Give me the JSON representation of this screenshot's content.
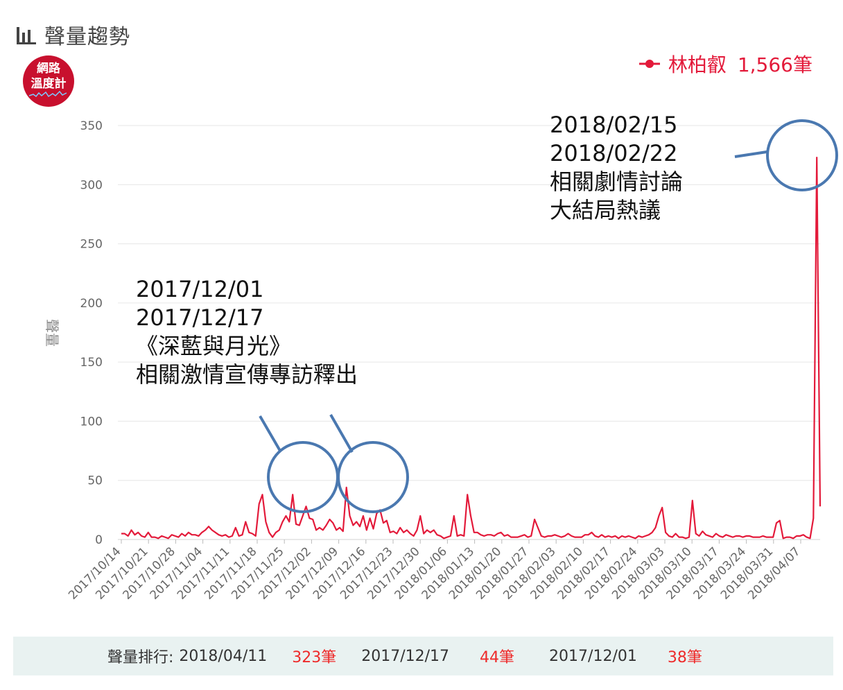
{
  "title": "聲量趨勢",
  "badge": {
    "line1": "網路",
    "line2": "溫度計"
  },
  "legend": {
    "name": "林柏叡",
    "count": "1,566筆",
    "color": "#e31a3a"
  },
  "annotations": [
    {
      "lines": [
        "2018/02/15",
        "2018/02/22",
        "相關劇情討論",
        "大結局熱議"
      ]
    },
    {
      "lines": [
        "2017/12/01",
        "2017/12/17",
        "《深藍與月光》",
        "相關激情宣傳專訪釋出"
      ]
    }
  ],
  "footer": {
    "label": "聲量排行:",
    "ranks": [
      {
        "date": "2018/04/11",
        "count": "323筆"
      },
      {
        "date": "2017/12/17",
        "count": "44筆"
      },
      {
        "date": "2017/12/01",
        "count": "38筆"
      }
    ]
  },
  "chart_data": {
    "type": "line",
    "ylabel": "聲量",
    "ylim": [
      0,
      350
    ],
    "yticks": [
      0,
      50,
      100,
      150,
      200,
      250,
      300,
      350
    ],
    "grid": true,
    "legend_position": "top-right",
    "xtick_labels": [
      "2017/10/14",
      "2017/10/21",
      "2017/10/28",
      "2017/11/04",
      "2017/11/11",
      "2017/11/18",
      "2017/11/25",
      "2017/12/02",
      "2017/12/09",
      "2017/12/16",
      "2017/12/23",
      "2017/12/30",
      "2018/01/06",
      "2018/01/13",
      "2018/01/20",
      "2018/01/27",
      "2018/02/03",
      "2018/02/10",
      "2018/02/17",
      "2018/02/24",
      "2018/03/03",
      "2018/03/10",
      "2018/03/17",
      "2018/03/24",
      "2018/03/31",
      "2018/04/07"
    ],
    "x_start": "2017/10/14",
    "x_end": "2018/04/12",
    "series": [
      {
        "name": "林柏叡",
        "color": "#e31a3a",
        "values": [
          5,
          5,
          3,
          8,
          4,
          6,
          3,
          2,
          6,
          2,
          2,
          1,
          3,
          2,
          1,
          4,
          3,
          2,
          5,
          3,
          6,
          4,
          4,
          3,
          6,
          8,
          11,
          8,
          6,
          4,
          3,
          4,
          2,
          3,
          10,
          3,
          4,
          15,
          6,
          5,
          3,
          30,
          38,
          15,
          6,
          2,
          6,
          8,
          15,
          20,
          15,
          38,
          13,
          12,
          20,
          28,
          18,
          17,
          8,
          10,
          8,
          12,
          17,
          14,
          8,
          10,
          7,
          44,
          20,
          12,
          15,
          11,
          20,
          8,
          18,
          9,
          22,
          25,
          14,
          16,
          6,
          7,
          5,
          10,
          6,
          8,
          5,
          3,
          8,
          20,
          5,
          8,
          6,
          8,
          4,
          3,
          1,
          2,
          3,
          20,
          3,
          4,
          3,
          38,
          20,
          6,
          6,
          4,
          3,
          4,
          4,
          3,
          5,
          6,
          3,
          4,
          2,
          2,
          2,
          3,
          4,
          2,
          3,
          17,
          10,
          3,
          2,
          3,
          3,
          4,
          3,
          2,
          3,
          5,
          3,
          2,
          2,
          2,
          4,
          4,
          6,
          3,
          2,
          4,
          2,
          3,
          2,
          3,
          1,
          3,
          2,
          3,
          2,
          1,
          3,
          2,
          3,
          4,
          6,
          10,
          20,
          27,
          6,
          3,
          2,
          5,
          2,
          2,
          1,
          2,
          33,
          5,
          3,
          7,
          4,
          3,
          2,
          5,
          3,
          2,
          4,
          3,
          2,
          3,
          3,
          2,
          3,
          3,
          2,
          2,
          2,
          3,
          2,
          2,
          2,
          14,
          16,
          1,
          2,
          2,
          1,
          3,
          3,
          4,
          2,
          1,
          18,
          323,
          28
        ]
      }
    ]
  }
}
